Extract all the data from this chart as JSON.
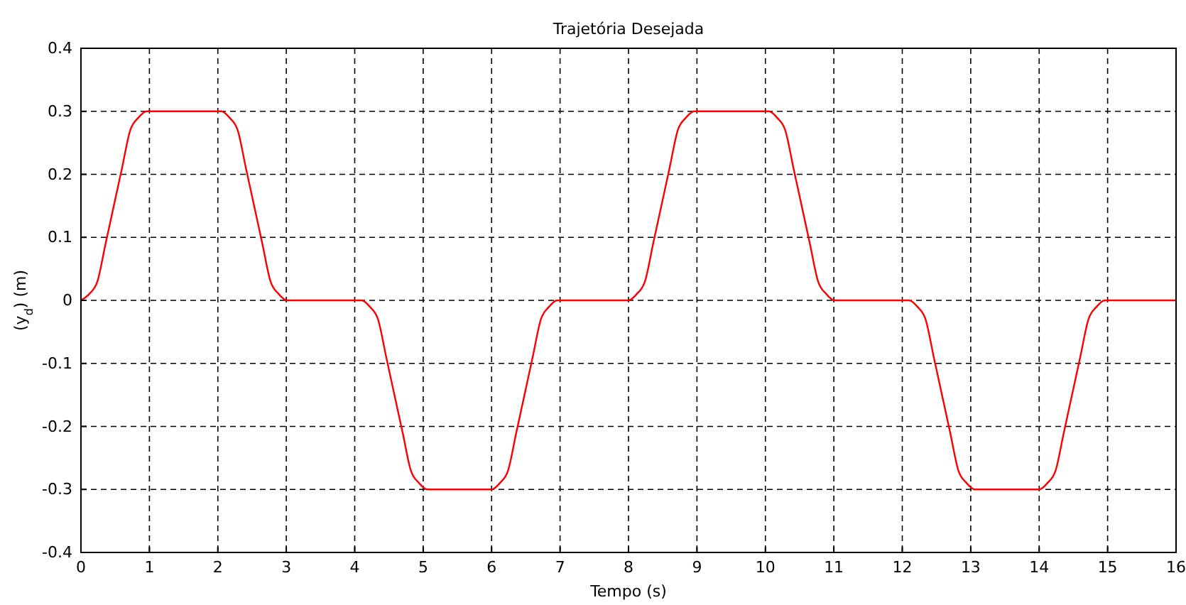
{
  "chart_data": {
    "type": "line",
    "title": "Trajetória Desejada",
    "xlabel": "Tempo (s)",
    "ylabel": "(y$_{d}$) (m)",
    "x": [
      0,
      0.12,
      0.24,
      0.36,
      0.48,
      0.6,
      0.72,
      0.84,
      0.96,
      2.05,
      2.17,
      2.29,
      2.41,
      2.53,
      2.65,
      2.77,
      2.89,
      3.01,
      4.1,
      4.22,
      4.34,
      4.46,
      4.58,
      4.7,
      4.82,
      4.94,
      5.06,
      6.0,
      6.12,
      6.24,
      6.36,
      6.48,
      6.6,
      6.72,
      6.84,
      6.96,
      8.0,
      8.12,
      8.24,
      8.36,
      8.48,
      8.6,
      8.72,
      8.84,
      8.96,
      10.05,
      10.17,
      10.29,
      10.41,
      10.53,
      10.65,
      10.77,
      10.89,
      11.01,
      12.1,
      12.22,
      12.34,
      12.46,
      12.58,
      12.7,
      12.82,
      12.94,
      13.06,
      14.0,
      14.12,
      14.24,
      14.36,
      14.48,
      14.6,
      14.72,
      14.84,
      14.96,
      16
    ],
    "series": [
      {
        "color": "#ff0000",
        "values": [
          0,
          0.01,
          0.03,
          0.09,
          0.15,
          0.21,
          0.27,
          0.29,
          0.3,
          0.3,
          0.29,
          0.27,
          0.21,
          0.15,
          0.09,
          0.03,
          0.01,
          0,
          0,
          -0.01,
          -0.03,
          -0.09,
          -0.15,
          -0.21,
          -0.27,
          -0.29,
          -0.3,
          -0.3,
          -0.29,
          -0.27,
          -0.21,
          -0.15,
          -0.09,
          -0.03,
          -0.01,
          0,
          0,
          0.01,
          0.03,
          0.09,
          0.15,
          0.21,
          0.27,
          0.29,
          0.3,
          0.3,
          0.29,
          0.27,
          0.21,
          0.15,
          0.09,
          0.03,
          0.01,
          0,
          0,
          -0.01,
          -0.03,
          -0.09,
          -0.15,
          -0.21,
          -0.27,
          -0.29,
          -0.3,
          -0.3,
          -0.29,
          -0.27,
          -0.21,
          -0.15,
          -0.09,
          -0.03,
          -0.01,
          0,
          0
        ]
      }
    ],
    "xlim": [
      0,
      16
    ],
    "xticks": [
      0,
      1,
      2,
      3,
      4,
      5,
      6,
      7,
      8,
      9,
      10,
      11,
      12,
      13,
      14,
      15,
      16
    ],
    "ylim": [
      -0.4,
      0.4
    ],
    "yticks": [
      -0.4,
      -0.3,
      -0.2,
      -0.1,
      0,
      0.1,
      0.2,
      0.3,
      0.4
    ],
    "grid": true
  }
}
